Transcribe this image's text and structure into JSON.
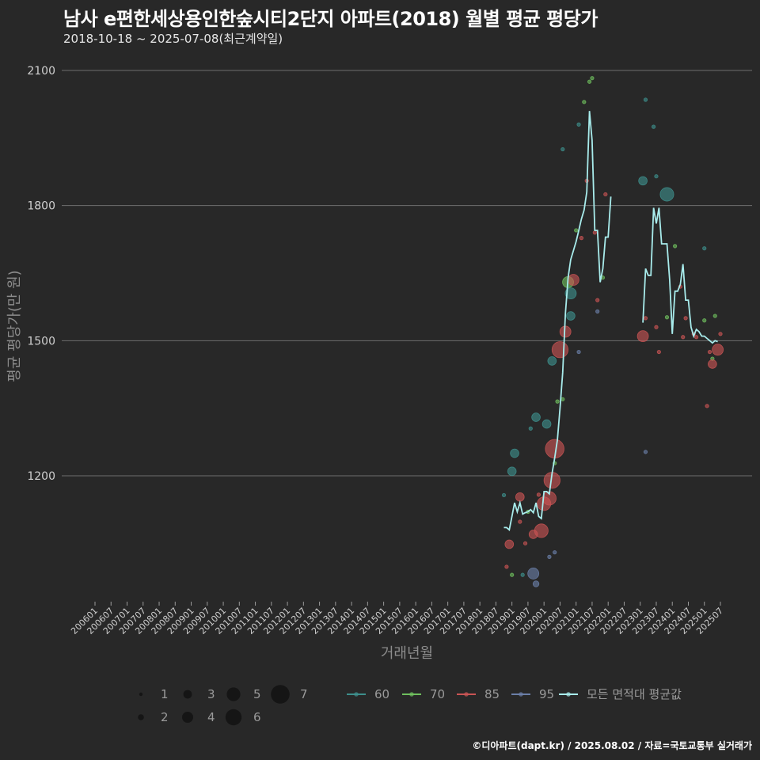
{
  "header": {
    "title": "남사 e편한세상용인한숲시티2단지 아파트(2018) 월별 평균 평당가",
    "subtitle": "2018-10-18 ~ 2025-07-08(최근계약일)"
  },
  "footer": {
    "source": "©디아파트(dapt.kr) / 2025.08.02 / 자료=국토교통부 실거래가"
  },
  "chart_data": {
    "type": "scatter",
    "xlabel": "거래년월",
    "ylabel": "평균 평당가(만 원)",
    "ylim": [
      930,
      2140
    ],
    "yticks": [
      1200,
      1500,
      1800,
      2100
    ],
    "x_tick_labels": [
      "200601",
      "200607",
      "200701",
      "200707",
      "200801",
      "200807",
      "200901",
      "200907",
      "201001",
      "201007",
      "201101",
      "201107",
      "201201",
      "201207",
      "201301",
      "201307",
      "201401",
      "201407",
      "201501",
      "201507",
      "201601",
      "201607",
      "201701",
      "201707",
      "201801",
      "201807",
      "201901",
      "201907",
      "202001",
      "202007",
      "202101",
      "202107",
      "202201",
      "202207",
      "202301",
      "202307",
      "202401",
      "202407",
      "202501",
      "202507"
    ],
    "grid": true,
    "colors": {
      "60": "#3d8f8c",
      "70": "#6fbf5e",
      "85": "#c95454",
      "95": "#6b7fa8",
      "avg": "#a8ecec"
    },
    "size_legend": [
      "1",
      "2",
      "3",
      "4",
      "5",
      "6",
      "7"
    ],
    "area_legend": [
      {
        "key": "60",
        "label": "60"
      },
      {
        "key": "70",
        "label": "70"
      },
      {
        "key": "85",
        "label": "85"
      },
      {
        "key": "95",
        "label": "95"
      },
      {
        "key": "avg",
        "label": "모든 면적대 평균값"
      }
    ],
    "points": [
      {
        "x": "201810",
        "y": 1157,
        "s": 1,
        "a": "60"
      },
      {
        "x": "201811",
        "y": 998,
        "s": 1,
        "a": "85"
      },
      {
        "x": "201812",
        "y": 1048,
        "s": 3,
        "a": "85"
      },
      {
        "x": "201901",
        "y": 1210,
        "s": 3,
        "a": "60"
      },
      {
        "x": "201901",
        "y": 980,
        "s": 1,
        "a": "70"
      },
      {
        "x": "201902",
        "y": 1250,
        "s": 3,
        "a": "60"
      },
      {
        "x": "201904",
        "y": 1153,
        "s": 3,
        "a": "85"
      },
      {
        "x": "201904",
        "y": 1098,
        "s": 1,
        "a": "85"
      },
      {
        "x": "201905",
        "y": 980,
        "s": 1,
        "a": "60"
      },
      {
        "x": "201906",
        "y": 1050,
        "s": 1,
        "a": "85"
      },
      {
        "x": "201907",
        "y": 1120,
        "s": 1,
        "a": "70"
      },
      {
        "x": "201908",
        "y": 1305,
        "s": 1,
        "a": "60"
      },
      {
        "x": "201909",
        "y": 1070,
        "s": 3,
        "a": "85"
      },
      {
        "x": "201909",
        "y": 983,
        "s": 4,
        "a": "95"
      },
      {
        "x": "201910",
        "y": 1330,
        "s": 3,
        "a": "60"
      },
      {
        "x": "201910",
        "y": 960,
        "s": 2,
        "a": "95"
      },
      {
        "x": "201911",
        "y": 1158,
        "s": 1,
        "a": "85"
      },
      {
        "x": "201912",
        "y": 1078,
        "s": 5,
        "a": "85"
      },
      {
        "x": "202001",
        "y": 1138,
        "s": 5,
        "a": "85"
      },
      {
        "x": "202002",
        "y": 1315,
        "s": 3,
        "a": "60"
      },
      {
        "x": "202003",
        "y": 1150,
        "s": 5,
        "a": "85"
      },
      {
        "x": "202003",
        "y": 1020,
        "s": 1,
        "a": "95"
      },
      {
        "x": "202004",
        "y": 1190,
        "s": 6,
        "a": "85"
      },
      {
        "x": "202004",
        "y": 1455,
        "s": 3,
        "a": "60"
      },
      {
        "x": "202005",
        "y": 1260,
        "s": 7,
        "a": "85"
      },
      {
        "x": "202005",
        "y": 1030,
        "s": 1,
        "a": "95"
      },
      {
        "x": "202005",
        "y": 1228,
        "s": 1,
        "a": "70"
      },
      {
        "x": "202006",
        "y": 1365,
        "s": 1,
        "a": "70"
      },
      {
        "x": "202007",
        "y": 1480,
        "s": 6,
        "a": "85"
      },
      {
        "x": "202008",
        "y": 1370,
        "s": 1,
        "a": "70"
      },
      {
        "x": "202008",
        "y": 1925,
        "s": 1,
        "a": "60"
      },
      {
        "x": "202009",
        "y": 1520,
        "s": 4,
        "a": "85"
      },
      {
        "x": "202010",
        "y": 1630,
        "s": 4,
        "a": "70"
      },
      {
        "x": "202011",
        "y": 1555,
        "s": 3,
        "a": "60"
      },
      {
        "x": "202011",
        "y": 1605,
        "s": 4,
        "a": "60"
      },
      {
        "x": "202012",
        "y": 1635,
        "s": 4,
        "a": "85"
      },
      {
        "x": "202101",
        "y": 1745,
        "s": 1,
        "a": "70"
      },
      {
        "x": "202102",
        "y": 1980,
        "s": 1,
        "a": "60"
      },
      {
        "x": "202102",
        "y": 1475,
        "s": 1,
        "a": "95"
      },
      {
        "x": "202103",
        "y": 1728,
        "s": 1,
        "a": "85"
      },
      {
        "x": "202104",
        "y": 2030,
        "s": 1,
        "a": "70"
      },
      {
        "x": "202105",
        "y": 1855,
        "s": 1,
        "a": "85"
      },
      {
        "x": "202106",
        "y": 2075,
        "s": 1,
        "a": "70"
      },
      {
        "x": "202107",
        "y": 2083,
        "s": 1,
        "a": "70"
      },
      {
        "x": "202108",
        "y": 1740,
        "s": 1,
        "a": "85"
      },
      {
        "x": "202109",
        "y": 1590,
        "s": 1,
        "a": "85"
      },
      {
        "x": "202109",
        "y": 1565,
        "s": 1,
        "a": "95"
      },
      {
        "x": "202111",
        "y": 1640,
        "s": 1,
        "a": "70"
      },
      {
        "x": "202112",
        "y": 1825,
        "s": 1,
        "a": "85"
      },
      {
        "x": "202302",
        "y": 1855,
        "s": 3,
        "a": "60"
      },
      {
        "x": "202302",
        "y": 1510,
        "s": 4,
        "a": "85"
      },
      {
        "x": "202303",
        "y": 2035,
        "s": 1,
        "a": "60"
      },
      {
        "x": "202303",
        "y": 1550,
        "s": 1,
        "a": "85"
      },
      {
        "x": "202303",
        "y": 1253,
        "s": 1,
        "a": "95"
      },
      {
        "x": "202306",
        "y": 1975,
        "s": 1,
        "a": "60"
      },
      {
        "x": "202307",
        "y": 1865,
        "s": 1,
        "a": "60"
      },
      {
        "x": "202307",
        "y": 1530,
        "s": 1,
        "a": "85"
      },
      {
        "x": "202308",
        "y": 1475,
        "s": 1,
        "a": "85"
      },
      {
        "x": "202311",
        "y": 1825,
        "s": 5,
        "a": "60"
      },
      {
        "x": "202311",
        "y": 1552,
        "s": 1,
        "a": "70"
      },
      {
        "x": "202402",
        "y": 1710,
        "s": 1,
        "a": "70"
      },
      {
        "x": "202404",
        "y": 1620,
        "s": 1,
        "a": "85"
      },
      {
        "x": "202405",
        "y": 1508,
        "s": 1,
        "a": "85"
      },
      {
        "x": "202406",
        "y": 1550,
        "s": 1,
        "a": "85"
      },
      {
        "x": "202409",
        "y": 1515,
        "s": 1,
        "a": "85"
      },
      {
        "x": "202410",
        "y": 1508,
        "s": 1,
        "a": "85"
      },
      {
        "x": "202501",
        "y": 1705,
        "s": 1,
        "a": "60"
      },
      {
        "x": "202501",
        "y": 1545,
        "s": 1,
        "a": "70"
      },
      {
        "x": "202502",
        "y": 1355,
        "s": 1,
        "a": "85"
      },
      {
        "x": "202503",
        "y": 1475,
        "s": 1,
        "a": "85"
      },
      {
        "x": "202504",
        "y": 1460,
        "s": 1,
        "a": "70"
      },
      {
        "x": "202504",
        "y": 1448,
        "s": 3,
        "a": "85"
      },
      {
        "x": "202505",
        "y": 1555,
        "s": 1,
        "a": "70"
      },
      {
        "x": "202506",
        "y": 1480,
        "s": 4,
        "a": "85"
      },
      {
        "x": "202507",
        "y": 1515,
        "s": 1,
        "a": "85"
      }
    ],
    "avg_segments": [
      [
        {
          "x": "201810",
          "y": 1085
        },
        {
          "x": "201811",
          "y": 1085
        },
        {
          "x": "201812",
          "y": 1080
        },
        {
          "x": "201901",
          "y": 1110
        },
        {
          "x": "201902",
          "y": 1140
        },
        {
          "x": "201903",
          "y": 1120
        },
        {
          "x": "201904",
          "y": 1140
        },
        {
          "x": "201905",
          "y": 1115
        },
        {
          "x": "201906",
          "y": 1118
        },
        {
          "x": "201907",
          "y": 1120
        },
        {
          "x": "201908",
          "y": 1125
        },
        {
          "x": "201909",
          "y": 1118
        },
        {
          "x": "201910",
          "y": 1140
        },
        {
          "x": "201911",
          "y": 1110
        },
        {
          "x": "201912",
          "y": 1105
        },
        {
          "x": "202001",
          "y": 1165
        },
        {
          "x": "202002",
          "y": 1165
        },
        {
          "x": "202003",
          "y": 1160
        },
        {
          "x": "202004",
          "y": 1205
        },
        {
          "x": "202005",
          "y": 1240
        },
        {
          "x": "202006",
          "y": 1280
        },
        {
          "x": "202007",
          "y": 1350
        },
        {
          "x": "202008",
          "y": 1430
        },
        {
          "x": "202009",
          "y": 1560
        },
        {
          "x": "202010",
          "y": 1640
        },
        {
          "x": "202011",
          "y": 1680
        },
        {
          "x": "202012",
          "y": 1700
        },
        {
          "x": "202101",
          "y": 1720
        },
        {
          "x": "202102",
          "y": 1745
        },
        {
          "x": "202103",
          "y": 1770
        },
        {
          "x": "202104",
          "y": 1790
        },
        {
          "x": "202105",
          "y": 1830
        },
        {
          "x": "202106",
          "y": 2010
        },
        {
          "x": "202107",
          "y": 1945
        },
        {
          "x": "202108",
          "y": 1745
        },
        {
          "x": "202109",
          "y": 1745
        },
        {
          "x": "202110",
          "y": 1630
        },
        {
          "x": "202111",
          "y": 1660
        },
        {
          "x": "202112",
          "y": 1730
        },
        {
          "x": "202201",
          "y": 1730
        },
        {
          "x": "202202",
          "y": 1820
        }
      ],
      [
        {
          "x": "202302",
          "y": 1540
        },
        {
          "x": "202303",
          "y": 1660
        },
        {
          "x": "202304",
          "y": 1645
        },
        {
          "x": "202305",
          "y": 1645
        },
        {
          "x": "202306",
          "y": 1795
        },
        {
          "x": "202307",
          "y": 1760
        },
        {
          "x": "202308",
          "y": 1795
        },
        {
          "x": "202309",
          "y": 1715
        },
        {
          "x": "202310",
          "y": 1715
        },
        {
          "x": "202311",
          "y": 1715
        },
        {
          "x": "202312",
          "y": 1635
        },
        {
          "x": "202401",
          "y": 1515
        },
        {
          "x": "202402",
          "y": 1610
        },
        {
          "x": "202403",
          "y": 1610
        },
        {
          "x": "202404",
          "y": 1625
        },
        {
          "x": "202405",
          "y": 1670
        },
        {
          "x": "202406",
          "y": 1590
        },
        {
          "x": "202407",
          "y": 1590
        },
        {
          "x": "202408",
          "y": 1530
        },
        {
          "x": "202409",
          "y": 1510
        },
        {
          "x": "202410",
          "y": 1525
        },
        {
          "x": "202411",
          "y": 1520
        },
        {
          "x": "202412",
          "y": 1510
        },
        {
          "x": "202501",
          "y": 1510
        },
        {
          "x": "202502",
          "y": 1505
        },
        {
          "x": "202503",
          "y": 1500
        },
        {
          "x": "202504",
          "y": 1495
        },
        {
          "x": "202505",
          "y": 1500
        },
        {
          "x": "202506",
          "y": 1498
        }
      ]
    ]
  }
}
